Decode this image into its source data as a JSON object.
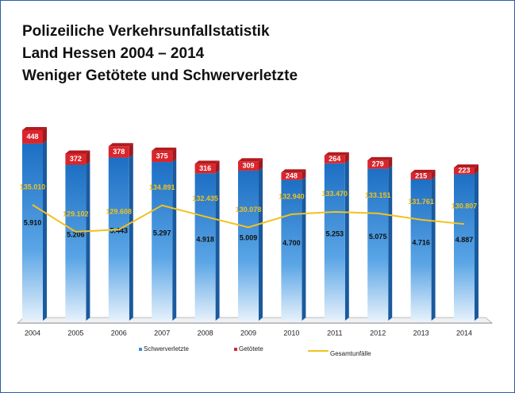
{
  "chart_data": {
    "type": "bar",
    "title": [
      "Polizeiliche Verkehrsunfallstatistik",
      "Land Hessen 2004 – 2014",
      "Weniger Getötete und Schwerverletzte"
    ],
    "categories": [
      "2004",
      "2005",
      "2006",
      "2007",
      "2008",
      "2009",
      "2010",
      "2011",
      "2012",
      "2013",
      "2014"
    ],
    "stacked": true,
    "series": [
      {
        "name": "Schwerverletzte",
        "color": "#3a8fd9",
        "values": [
          5910,
          5206,
          5443,
          5297,
          4918,
          5009,
          4700,
          5253,
          5075,
          4716,
          4887
        ],
        "value_labels": [
          "5.910",
          "5.206",
          "5.443",
          "5.297",
          "4.918",
          "5.009",
          "4.700",
          "5.253",
          "5.075",
          "4.716",
          "4.887"
        ]
      },
      {
        "name": "Getötete",
        "color": "#d9262c",
        "values": [
          448,
          372,
          378,
          375,
          316,
          309,
          248,
          264,
          279,
          215,
          223
        ]
      },
      {
        "name": "Gesamtunfälle",
        "color": "#f2c21c",
        "type": "line",
        "values": [
          135010,
          129102,
          129608,
          134891,
          132435,
          130078,
          132940,
          133470,
          133151,
          131761,
          130807
        ],
        "value_labels": [
          "135.010",
          "129.102",
          "129.608",
          "134.891",
          "132.435",
          "130.078",
          "132.940",
          "133.470",
          "133.151",
          "131.761",
          "130.807"
        ]
      }
    ]
  }
}
